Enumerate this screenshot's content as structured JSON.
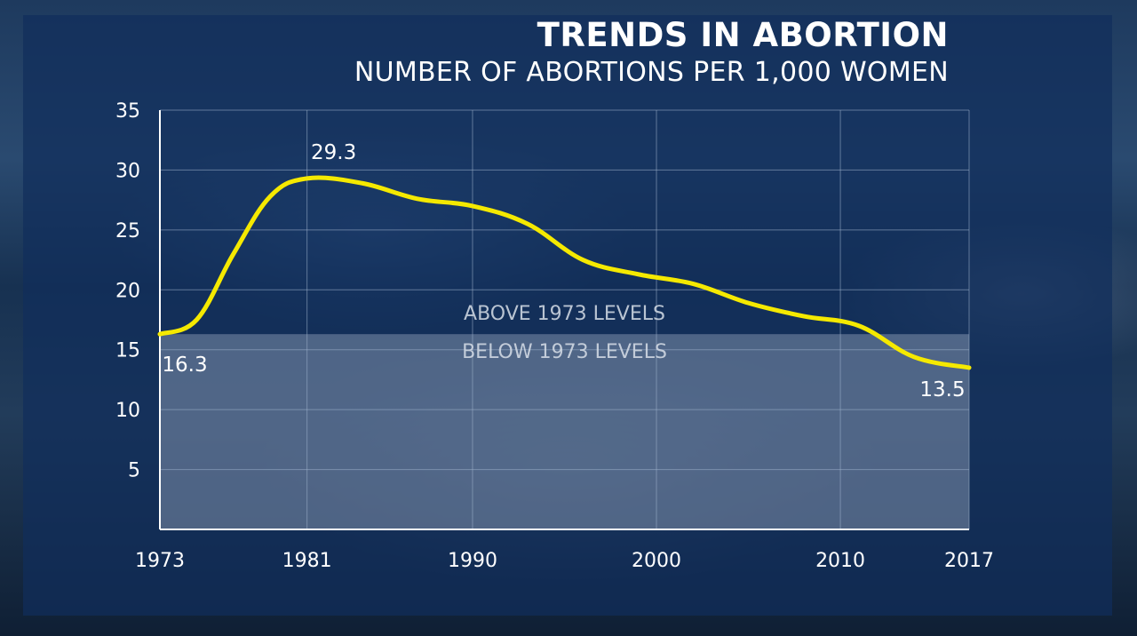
{
  "header": {
    "title": "TRENDS IN ABORTION",
    "subtitle": "NUMBER OF ABORTIONS PER 1,000 WOMEN"
  },
  "chart_data": {
    "type": "line",
    "title": "TRENDS IN ABORTION",
    "subtitle": "NUMBER OF ABORTIONS PER 1,000 WOMEN",
    "xlabel": "",
    "ylabel": "",
    "x": [
      1973,
      1975,
      1977,
      1979,
      1981,
      1984,
      1987,
      1990,
      1993,
      1996,
      1999,
      2002,
      2005,
      2008,
      2011,
      2014,
      2017
    ],
    "series": [
      {
        "name": "",
        "color": "#f5e900",
        "values": [
          16.3,
          17.5,
          23.0,
          27.8,
          29.3,
          28.9,
          27.6,
          27.0,
          25.5,
          22.5,
          21.3,
          20.5,
          18.9,
          17.8,
          17.0,
          14.4,
          13.5
        ]
      }
    ],
    "xticks": [
      "1973",
      "1981",
      "1990",
      "2000",
      "2010",
      "2017"
    ],
    "xtick_values": [
      1973,
      1981,
      1990,
      2000,
      2010,
      2017
    ],
    "yticks": [
      "5",
      "10",
      "15",
      "20",
      "25",
      "30",
      "35"
    ],
    "ytick_values": [
      5,
      10,
      15,
      20,
      25,
      30,
      35
    ],
    "xlim": [
      1973,
      2017
    ],
    "ylim": [
      0,
      35
    ],
    "grid": true,
    "data_labels": [
      {
        "x": 1973,
        "y": 16.3,
        "text": "16.3"
      },
      {
        "x": 1981,
        "y": 29.3,
        "text": "29.3"
      },
      {
        "x": 2017,
        "y": 13.5,
        "text": "13.5"
      }
    ],
    "reference": {
      "value": 16.3,
      "above_label": "ABOVE 1973 LEVELS",
      "below_label": "BELOW 1973 LEVELS"
    },
    "colors": {
      "line": "#f5e900",
      "grid": "#9fb3cc",
      "axis": "#ffffff",
      "text": "#ffffff",
      "band_text": "#d7dee8",
      "panel": "#102e5c"
    }
  }
}
